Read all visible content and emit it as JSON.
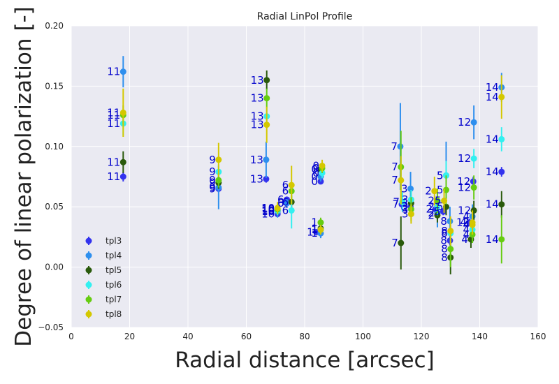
{
  "chart_data": {
    "type": "scatter",
    "title": "Radial LinPol Profile",
    "xlabel": "Radial distance [arcsec]",
    "ylabel": "Degree of linear polarization [-]",
    "xlim": [
      0,
      160
    ],
    "ylim": [
      -0.05,
      0.2
    ],
    "xticks": [
      "0",
      "20",
      "40",
      "60",
      "80",
      "100",
      "120",
      "140",
      "160"
    ],
    "yticks": [
      "−0.05",
      "0.00",
      "0.05",
      "0.10",
      "0.15",
      "0.20"
    ],
    "grid": true,
    "legend_position": "lower-left",
    "series": [
      {
        "name": "tpl3",
        "color": "#3333ee",
        "points": [
          {
            "x": 17.8,
            "y": 0.075,
            "err": 0.004,
            "label": "11"
          },
          {
            "x": 50.5,
            "y": 0.065,
            "err": 0.003,
            "label": "9"
          },
          {
            "x": 66.8,
            "y": 0.073,
            "err": 0.003,
            "label": "13"
          },
          {
            "x": 70.7,
            "y": 0.044,
            "err": 0.002,
            "label": "10"
          },
          {
            "x": 73.9,
            "y": 0.056,
            "err": 0.002,
            "label": "6"
          },
          {
            "x": 85.5,
            "y": 0.071,
            "err": 0.002,
            "label": "0"
          },
          {
            "x": 84.0,
            "y": 0.029,
            "err": 0.002,
            "label": "1"
          },
          {
            "x": 113.3,
            "y": 0.052,
            "err": 0.004,
            "label": "7"
          },
          {
            "x": 116.3,
            "y": 0.05,
            "err": 0.003,
            "label": "3"
          },
          {
            "x": 124.8,
            "y": 0.048,
            "err": 0.003,
            "label": "2"
          },
          {
            "x": 127.5,
            "y": 0.046,
            "err": 0.003,
            "label": "5"
          },
          {
            "x": 129.8,
            "y": 0.022,
            "err": 0.004,
            "label": "8"
          },
          {
            "x": 137.8,
            "y": 0.071,
            "err": 0.004,
            "label": "12"
          },
          {
            "x": 136.5,
            "y": 0.037,
            "err": 0.003,
            "label": "4"
          },
          {
            "x": 147.5,
            "y": 0.079,
            "err": 0.004,
            "label": "14"
          }
        ]
      },
      {
        "name": "tpl4",
        "color": "#2e8fee",
        "points": [
          {
            "x": 17.8,
            "y": 0.162,
            "err": 0.013,
            "label": "11"
          },
          {
            "x": 50.5,
            "y": 0.066,
            "err": 0.018,
            "label": "9"
          },
          {
            "x": 66.8,
            "y": 0.089,
            "err": 0.015,
            "label": "13"
          },
          {
            "x": 70.7,
            "y": 0.046,
            "err": 0.005,
            "label": "10"
          },
          {
            "x": 73.9,
            "y": 0.053,
            "err": 0.004,
            "label": "6"
          },
          {
            "x": 85.5,
            "y": 0.075,
            "err": 0.004,
            "label": "0"
          },
          {
            "x": 85.5,
            "y": 0.028,
            "err": 0.004,
            "label": "1"
          },
          {
            "x": 112.8,
            "y": 0.1,
            "err": 0.036,
            "label": "7"
          },
          {
            "x": 116.3,
            "y": 0.065,
            "err": 0.014,
            "label": "3"
          },
          {
            "x": 125.5,
            "y": 0.045,
            "err": 0.012,
            "label": "2"
          },
          {
            "x": 128.5,
            "y": 0.076,
            "err": 0.028,
            "label": "5"
          },
          {
            "x": 129.8,
            "y": 0.038,
            "err": 0.012,
            "label": "8"
          },
          {
            "x": 138.0,
            "y": 0.12,
            "err": 0.014,
            "label": "12"
          },
          {
            "x": 137.5,
            "y": 0.042,
            "err": 0.01,
            "label": "4"
          },
          {
            "x": 147.5,
            "y": 0.149,
            "err": 0.012,
            "label": "14"
          }
        ]
      },
      {
        "name": "tpl5",
        "color": "#2a5a0c",
        "points": [
          {
            "x": 17.8,
            "y": 0.087,
            "err": 0.009,
            "label": "11"
          },
          {
            "x": 50.5,
            "y": 0.07,
            "err": 0.005,
            "label": "9"
          },
          {
            "x": 67.0,
            "y": 0.155,
            "err": 0.008,
            "label": "13"
          },
          {
            "x": 70.7,
            "y": 0.047,
            "err": 0.004,
            "label": "10"
          },
          {
            "x": 75.5,
            "y": 0.054,
            "err": 0.005,
            "label": "6"
          },
          {
            "x": 85.5,
            "y": 0.081,
            "err": 0.004,
            "label": "0"
          },
          {
            "x": 85.5,
            "y": 0.032,
            "err": 0.004,
            "label": "1"
          },
          {
            "x": 113.0,
            "y": 0.02,
            "err": 0.022,
            "label": "7"
          },
          {
            "x": 116.5,
            "y": 0.053,
            "err": 0.01,
            "label": "3"
          },
          {
            "x": 125.5,
            "y": 0.043,
            "err": 0.006,
            "label": "2"
          },
          {
            "x": 128.5,
            "y": 0.05,
            "err": 0.007,
            "label": "5"
          },
          {
            "x": 130.0,
            "y": 0.008,
            "err": 0.014,
            "label": "8"
          },
          {
            "x": 138.0,
            "y": 0.047,
            "err": 0.008,
            "label": "12"
          },
          {
            "x": 137.0,
            "y": 0.023,
            "err": 0.007,
            "label": "4"
          },
          {
            "x": 147.5,
            "y": 0.052,
            "err": 0.011,
            "label": "14"
          }
        ]
      },
      {
        "name": "tpl6",
        "color": "#33f0f0",
        "points": [
          {
            "x": 17.8,
            "y": 0.119,
            "err": 0.01,
            "label": "11"
          },
          {
            "x": 50.5,
            "y": 0.079,
            "err": 0.006,
            "label": "9"
          },
          {
            "x": 67.0,
            "y": 0.125,
            "err": 0.007,
            "label": "13"
          },
          {
            "x": 70.7,
            "y": 0.047,
            "err": 0.004,
            "label": "10"
          },
          {
            "x": 75.5,
            "y": 0.047,
            "err": 0.015,
            "label": "6"
          },
          {
            "x": 86.0,
            "y": 0.078,
            "err": 0.004,
            "label": "0"
          },
          {
            "x": 85.5,
            "y": 0.031,
            "err": 0.004,
            "label": "1"
          },
          {
            "x": 113.5,
            "y": 0.054,
            "err": 0.008,
            "label": "7"
          },
          {
            "x": 116.5,
            "y": 0.056,
            "err": 0.008,
            "label": "3"
          },
          {
            "x": 125.5,
            "y": 0.05,
            "err": 0.007,
            "label": "2"
          },
          {
            "x": 128.5,
            "y": 0.076,
            "err": 0.012,
            "label": "5"
          },
          {
            "x": 130.0,
            "y": 0.028,
            "err": 0.01,
            "label": "8"
          },
          {
            "x": 138.0,
            "y": 0.09,
            "err": 0.008,
            "label": "12"
          },
          {
            "x": 137.5,
            "y": 0.031,
            "err": 0.006,
            "label": "4"
          },
          {
            "x": 147.5,
            "y": 0.106,
            "err": 0.01,
            "label": "14"
          }
        ]
      },
      {
        "name": "tpl7",
        "color": "#66cc11",
        "points": [
          {
            "x": 17.8,
            "y": 0.126,
            "err": 0.008,
            "label": "11"
          },
          {
            "x": 50.5,
            "y": 0.072,
            "err": 0.006,
            "label": "9"
          },
          {
            "x": 67.0,
            "y": 0.14,
            "err": 0.008,
            "label": "13"
          },
          {
            "x": 70.7,
            "y": 0.048,
            "err": 0.004,
            "label": "10"
          },
          {
            "x": 75.5,
            "y": 0.063,
            "err": 0.007,
            "label": "6"
          },
          {
            "x": 86.0,
            "y": 0.082,
            "err": 0.004,
            "label": "0"
          },
          {
            "x": 85.5,
            "y": 0.037,
            "err": 0.004,
            "label": "1"
          },
          {
            "x": 113.0,
            "y": 0.083,
            "err": 0.03,
            "label": "7"
          },
          {
            "x": 116.5,
            "y": 0.048,
            "err": 0.01,
            "label": "3"
          },
          {
            "x": 125.5,
            "y": 0.055,
            "err": 0.01,
            "label": "2"
          },
          {
            "x": 128.5,
            "y": 0.064,
            "err": 0.012,
            "label": "5"
          },
          {
            "x": 130.0,
            "y": 0.015,
            "err": 0.015,
            "label": "8"
          },
          {
            "x": 138.0,
            "y": 0.066,
            "err": 0.01,
            "label": "12"
          },
          {
            "x": 137.5,
            "y": 0.027,
            "err": 0.007,
            "label": "4"
          },
          {
            "x": 147.5,
            "y": 0.023,
            "err": 0.02,
            "label": "14"
          }
        ]
      },
      {
        "name": "tpl8",
        "color": "#d4c800",
        "points": [
          {
            "x": 17.8,
            "y": 0.128,
            "err": 0.02,
            "label": "11"
          },
          {
            "x": 50.5,
            "y": 0.089,
            "err": 0.014,
            "label": "9"
          },
          {
            "x": 67.0,
            "y": 0.118,
            "err": 0.015,
            "label": "13"
          },
          {
            "x": 70.7,
            "y": 0.049,
            "err": 0.005,
            "label": "10"
          },
          {
            "x": 75.5,
            "y": 0.068,
            "err": 0.016,
            "label": "6"
          },
          {
            "x": 86.0,
            "y": 0.084,
            "err": 0.005,
            "label": "0"
          },
          {
            "x": 85.5,
            "y": 0.031,
            "err": 0.004,
            "label": "1"
          },
          {
            "x": 113.0,
            "y": 0.072,
            "err": 0.02,
            "label": "7"
          },
          {
            "x": 116.5,
            "y": 0.044,
            "err": 0.008,
            "label": "3"
          },
          {
            "x": 124.5,
            "y": 0.063,
            "err": 0.012,
            "label": "2"
          },
          {
            "x": 127.8,
            "y": 0.055,
            "err": 0.01,
            "label": "5"
          },
          {
            "x": 130.0,
            "y": 0.03,
            "err": 0.012,
            "label": "8"
          },
          {
            "x": 137.5,
            "y": 0.037,
            "err": 0.01,
            "label": "12"
          },
          {
            "x": 137.5,
            "y": 0.035,
            "err": 0.008,
            "label": "4"
          },
          {
            "x": 147.5,
            "y": 0.141,
            "err": 0.018,
            "label": "14"
          }
        ]
      }
    ]
  }
}
